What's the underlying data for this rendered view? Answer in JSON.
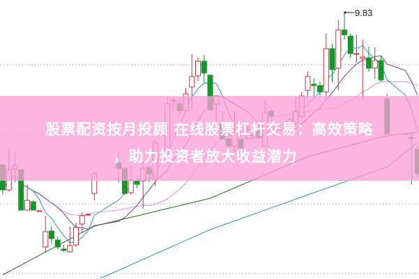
{
  "banner": {
    "line1": "股票配资按月投顾 在线股票杠杆交易：高效策略",
    "line2": "，助力投资者放大收益潜力"
  },
  "chart_data": {
    "type": "candlestick",
    "grid": true,
    "grid_levels": [
      9.08,
      8.08,
      7.08,
      6.08
    ],
    "ylim": [
      6.0,
      10.0
    ],
    "peak_label": "9.83",
    "colors": {
      "up": "#d6283a",
      "down": "#16962a",
      "ma5": "#2a9aa8",
      "ma10": "#7a3a88",
      "ma20": "#d890e0",
      "long1": "#2a6a2a",
      "long2": "#2a9a9a"
    },
    "candles_ohlc_note": "[open, close, high, low]",
    "candles": [
      [
        7.64,
        7.28,
        7.66,
        7.21
      ],
      [
        7.28,
        7.57,
        7.86,
        7.26
      ],
      [
        7.58,
        7.63,
        7.82,
        7.39
      ],
      [
        7.57,
        6.99,
        7.57,
        6.99
      ],
      [
        6.99,
        7.13,
        7.36,
        6.99
      ],
      [
        7.11,
        6.99,
        7.13,
        6.99
      ],
      [
        6.98,
        6.98,
        6.98,
        6.98
      ],
      [
        6.46,
        6.68,
        6.91,
        6.39
      ],
      [
        6.69,
        6.58,
        6.76,
        6.51
      ],
      [
        6.56,
        6.46,
        6.61,
        6.43
      ],
      [
        6.43,
        6.41,
        6.49,
        6.39
      ],
      [
        6.39,
        6.48,
        6.75,
        6.39
      ],
      [
        6.49,
        6.74,
        6.81,
        6.46
      ],
      [
        6.79,
        6.91,
        6.96,
        6.66
      ],
      [
        6.92,
        6.93,
        6.94,
        6.91
      ],
      [
        7.23,
        7.51,
        7.56,
        7.13
      ],
      null,
      null,
      null,
      [
        7.67,
        7.59,
        7.81,
        7.39
      ],
      [
        7.59,
        7.23,
        7.6,
        7.21
      ],
      [
        7.24,
        7.42,
        7.63,
        7.21
      ],
      [
        7.41,
        7.36,
        7.46,
        7.31
      ],
      [
        7.41,
        7.59,
        7.69,
        7.01
      ],
      [
        7.6,
        7.51,
        7.64,
        7.39
      ],
      [
        7.44,
        7.96,
        8.01,
        7.34
      ],
      null,
      [
        7.84,
        8.52,
        8.63,
        7.81
      ],
      [
        8.56,
        8.57,
        8.61,
        8.41
      ],
      [
        8.52,
        8.42,
        8.61,
        8.36
      ],
      [
        8.42,
        8.66,
        8.74,
        8.41
      ],
      [
        8.76,
        8.91,
        9.23,
        8.44
      ],
      [
        8.92,
        9.13,
        9.18,
        8.84
      ],
      [
        9.13,
        8.96,
        9.22,
        8.81
      ],
      [
        8.93,
        8.43,
        8.93,
        8.43
      ],
      [
        8.51,
        8.63,
        8.64,
        8.24
      ],
      [
        8.24,
        8.01,
        8.41,
        8.01
      ],
      [
        8.01,
        7.91,
        8.11,
        7.84
      ],
      [
        7.91,
        8.11,
        8.41,
        7.81
      ],
      [
        8.01,
        7.88,
        8.11,
        7.68
      ],
      [
        8.14,
        8.15,
        8.21,
        8.01
      ],
      [
        8.06,
        8.07,
        8.1,
        8.0
      ],
      [
        8.13,
        8.03,
        8.24,
        8.01
      ],
      [
        7.91,
        8.39,
        8.58,
        7.91
      ],
      [
        8.41,
        8.34,
        8.46,
        8.26
      ],
      null,
      null,
      [
        8.18,
        8.29,
        8.31,
        8.16
      ],
      [
        8.24,
        8.41,
        8.61,
        8.21
      ],
      [
        8.34,
        8.63,
        8.69,
        8.31
      ],
      [
        8.71,
        8.91,
        8.98,
        8.61
      ],
      [
        8.8,
        8.78,
        8.89,
        8.61
      ],
      [
        8.78,
        8.69,
        8.84,
        8.61
      ],
      [
        8.69,
        9.31,
        9.53,
        8.61
      ],
      [
        9.31,
        9.01,
        9.38,
        8.83
      ],
      [
        9.03,
        9.58,
        9.72,
        8.71
      ],
      [
        9.58,
        9.51,
        9.83,
        9.44
      ],
      [
        9.49,
        9.24,
        9.53,
        9.18
      ],
      [
        9.23,
        9.24,
        9.51,
        9.11
      ],
      [
        9.17,
        9.19,
        9.44,
        8.61
      ],
      [
        9.18,
        9.03,
        9.34,
        8.98
      ],
      [
        9.03,
        9.14,
        9.33,
        8.88
      ],
      [
        9.14,
        8.86,
        9.21,
        8.84
      ],
      [
        8.59,
        8.09,
        8.66,
        8.08
      ],
      null,
      null,
      [
        8.09,
        8.09,
        8.1,
        8.08
      ],
      [
        8.03,
        8.02,
        8.11,
        7.36
      ],
      [
        7.86,
        7.51,
        7.91,
        7.46
      ]
    ],
    "long_lines": [
      {
        "key": "long1",
        "points": [
          [
            0,
            6.06
          ],
          [
            15,
            6.76
          ],
          [
            34,
            7.16
          ],
          [
            50,
            7.76
          ],
          [
            63,
            8.06
          ],
          [
            68,
            8.11
          ]
        ]
      },
      {
        "key": "long2",
        "points": [
          [
            16,
            6.01
          ],
          [
            34,
            6.71
          ],
          [
            50,
            7.21
          ],
          [
            63,
            7.61
          ],
          [
            68,
            7.96
          ]
        ]
      }
    ]
  }
}
